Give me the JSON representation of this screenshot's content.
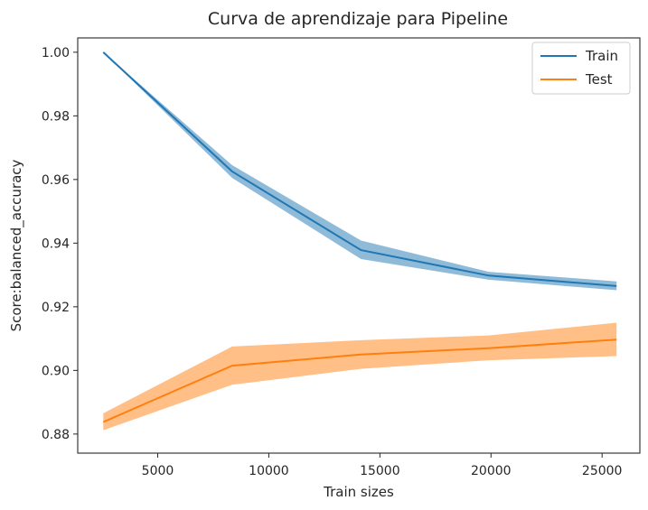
{
  "chart_data": {
    "type": "line",
    "title": "Curva de aprendizaje para Pipeline",
    "xlabel": "Train sizes",
    "ylabel": "Score:balanced_accuracy",
    "xlim": [
      1400,
      26700
    ],
    "ylim": [
      0.874,
      1.0045
    ],
    "xticks": [
      5000,
      10000,
      15000,
      20000,
      25000
    ],
    "yticks": [
      0.88,
      0.9,
      0.92,
      0.94,
      0.96,
      0.98,
      1.0
    ],
    "ytick_format": "2dp",
    "legend_position": "top-right",
    "grid": false,
    "series": [
      {
        "name": "Train",
        "color": "#1f77b4",
        "x": [
          2550,
          8350,
          14150,
          19900,
          25650
        ],
        "y": [
          1.0,
          0.9625,
          0.9378,
          0.9298,
          0.9265
        ],
        "band_upper": [
          1.0,
          0.9645,
          0.9408,
          0.931,
          0.928
        ],
        "band_lower": [
          1.0,
          0.9605,
          0.935,
          0.9285,
          0.9252
        ]
      },
      {
        "name": "Test",
        "color": "#ff7f0e",
        "x": [
          2550,
          8350,
          14150,
          19900,
          25650
        ],
        "y": [
          0.8838,
          0.9015,
          0.905,
          0.907,
          0.9097
        ],
        "band_upper": [
          0.8865,
          0.9075,
          0.9095,
          0.911,
          0.915
        ],
        "band_lower": [
          0.8812,
          0.8955,
          0.9005,
          0.9032,
          0.9045
        ]
      }
    ]
  }
}
